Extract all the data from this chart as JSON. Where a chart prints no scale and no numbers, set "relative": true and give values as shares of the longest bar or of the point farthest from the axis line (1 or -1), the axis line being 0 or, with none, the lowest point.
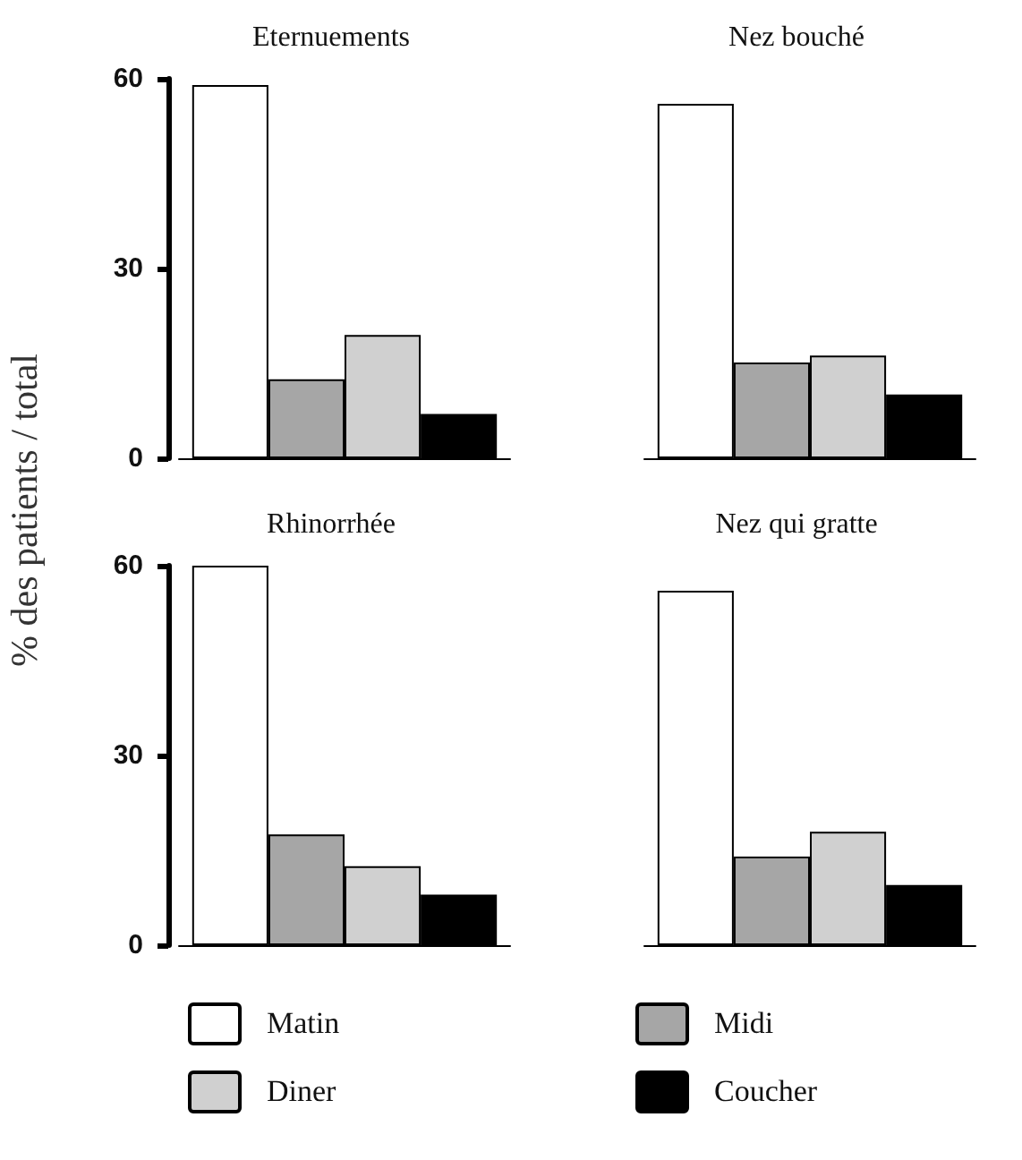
{
  "chart_data": [
    {
      "type": "bar",
      "title": "Eternuements",
      "ylabel": "% des patients / total",
      "categories": [
        null
      ],
      "ylim": [
        0,
        60
      ],
      "yticks": [
        0,
        30,
        60
      ],
      "tick_labels": "y",
      "legend": "bottom",
      "series": [
        {
          "name": "Matin",
          "color": "#ffffff",
          "values": [
            59
          ]
        },
        {
          "name": "Midi",
          "color": "#a6a6a6",
          "values": [
            12.5
          ]
        },
        {
          "name": "Diner",
          "color": "#d0d0d0",
          "values": [
            19.5
          ]
        },
        {
          "name": "Coucher",
          "color": "#000000",
          "values": [
            7
          ]
        }
      ]
    },
    {
      "type": "bar",
      "title": "Nez bouché",
      "categories": [
        null
      ],
      "relative": true,
      "series": [
        {
          "color": "#ffffff",
          "values": [
            1
          ]
        },
        {
          "color": "#a6a6a6",
          "values": [
            0.27
          ]
        },
        {
          "color": "#d0d0d0",
          "values": [
            0.29
          ]
        },
        {
          "color": "#000000",
          "values": [
            0.18
          ]
        }
      ]
    },
    {
      "type": "bar",
      "title": "Rhinorrhée",
      "categories": [
        null
      ],
      "ylim": [
        0,
        60
      ],
      "yticks": [
        0,
        30,
        60
      ],
      "tick_labels": "y",
      "series": [
        {
          "color": "#ffffff",
          "values": [
            60
          ]
        },
        {
          "color": "#a6a6a6",
          "values": [
            17.5
          ]
        },
        {
          "color": "#d0d0d0",
          "values": [
            12.5
          ]
        },
        {
          "color": "#000000",
          "values": [
            8
          ]
        }
      ]
    },
    {
      "type": "bar",
      "title": "Nez qui gratte",
      "categories": [
        null
      ],
      "relative": true,
      "series": [
        {
          "color": "#ffffff",
          "values": [
            1
          ]
        },
        {
          "color": "#a6a6a6",
          "values": [
            0.25
          ]
        },
        {
          "color": "#d0d0d0",
          "values": [
            0.32
          ]
        },
        {
          "color": "#000000",
          "values": [
            0.17
          ]
        }
      ]
    }
  ]
}
